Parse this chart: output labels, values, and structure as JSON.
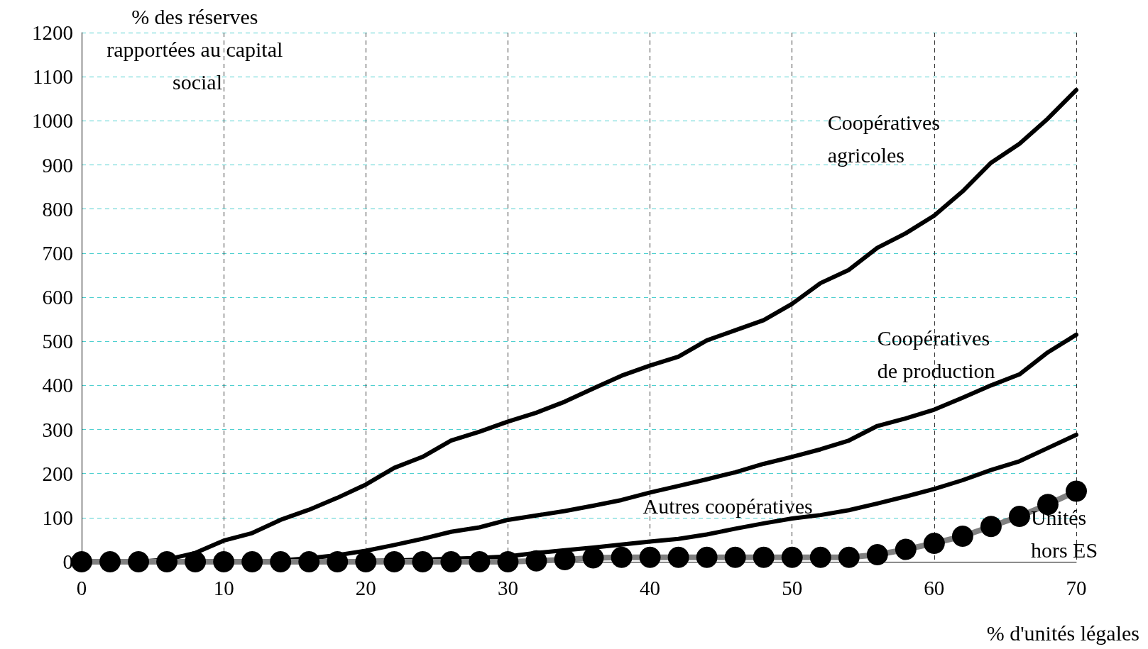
{
  "chart_data": {
    "type": "line",
    "xlabel": "% d'unités légales",
    "ylabel": "% des réserves rapportées au capital social",
    "x": [
      0,
      2,
      4,
      6,
      8,
      10,
      12,
      14,
      16,
      18,
      20,
      22,
      24,
      26,
      28,
      30,
      32,
      34,
      36,
      38,
      40,
      42,
      44,
      46,
      48,
      50,
      52,
      54,
      56,
      58,
      60,
      62,
      64,
      66,
      68,
      70
    ],
    "series": [
      {
        "name": "Coopératives agricoles",
        "color": "#000000",
        "marker": "none",
        "values": [
          0,
          0,
          0,
          5,
          20,
          48,
          65,
          95,
          118,
          145,
          175,
          213,
          238,
          275,
          295,
          318,
          338,
          363,
          393,
          422,
          445,
          465,
          502,
          525,
          548,
          585,
          632,
          662,
          712,
          745,
          785,
          840,
          905,
          948,
          1005,
          1070
        ]
      },
      {
        "name": "Coopératives de production",
        "color": "#000000",
        "marker": "none",
        "values": [
          0,
          0,
          0,
          0,
          0,
          0,
          0,
          3,
          8,
          15,
          25,
          38,
          52,
          68,
          78,
          95,
          105,
          115,
          127,
          140,
          157,
          172,
          187,
          203,
          222,
          238,
          255,
          275,
          308,
          325,
          345,
          372,
          400,
          425,
          475,
          515
        ]
      },
      {
        "name": "Autres coopératives",
        "color": "#000000",
        "marker": "none",
        "values": [
          0,
          0,
          0,
          0,
          0,
          0,
          0,
          0,
          0,
          0,
          2,
          3,
          5,
          7,
          9,
          12,
          20,
          26,
          32,
          39,
          46,
          52,
          62,
          75,
          87,
          98,
          106,
          117,
          132,
          148,
          165,
          185,
          208,
          228,
          258,
          288
        ]
      },
      {
        "name": "Unités hors ES",
        "color": "#000000",
        "marker": "circle",
        "values": [
          0,
          0,
          0,
          0,
          0,
          0,
          0,
          0,
          0,
          0,
          0,
          0,
          0,
          0,
          0,
          0,
          2,
          5,
          9,
          10,
          10,
          10,
          10,
          10,
          10,
          10,
          10,
          10,
          16,
          28,
          42,
          58,
          80,
          103,
          130,
          160
        ]
      }
    ],
    "xlim": [
      0,
      70
    ],
    "xticks": [
      0,
      10,
      20,
      30,
      40,
      50,
      60,
      70
    ],
    "ylim": [
      0,
      1200
    ],
    "yticks": [
      0,
      100,
      200,
      300,
      400,
      500,
      600,
      700,
      800,
      900,
      1000,
      1100,
      1200
    ],
    "grid": true,
    "legend": false,
    "line_style": "solid"
  }
}
